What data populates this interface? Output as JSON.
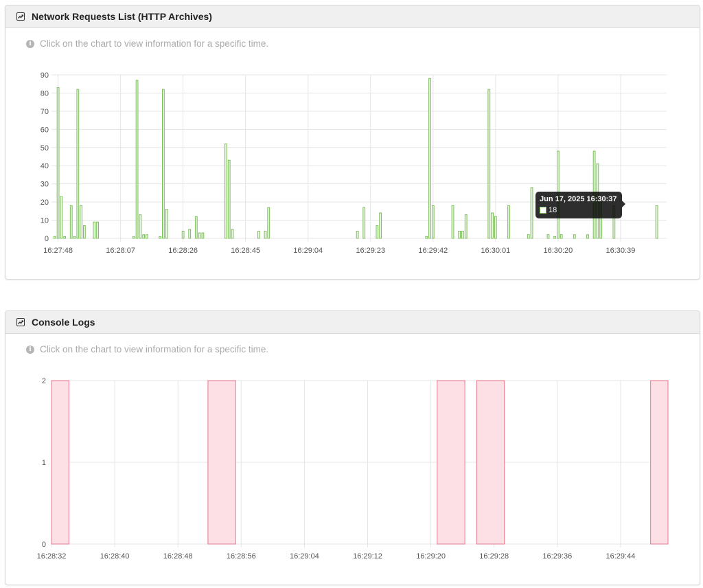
{
  "panels": [
    {
      "title": "Network Requests List (HTTP Archives)",
      "hint": "Click on the chart to view information for a specific time."
    },
    {
      "title": "Console Logs",
      "hint": "Click on the chart to view information for a specific time."
    }
  ],
  "tooltip": {
    "title": "Jun 17, 2025 16:30:37",
    "value": "18"
  },
  "colors": {
    "network_bar_stroke": "#7cbf5a",
    "network_bar_fill": "#eaf6e2",
    "console_stroke": "#e8768c",
    "console_fill": "#fde0e5",
    "grid": "#e5e5e5"
  },
  "chart_data": [
    {
      "type": "bar",
      "title": "",
      "xlabel": "",
      "ylabel": "",
      "ylim": [
        0,
        90
      ],
      "yticks": [
        "0",
        "10",
        "20",
        "30",
        "40",
        "50",
        "60",
        "70",
        "80",
        "90"
      ],
      "xticks": [
        "16:27:48",
        "16:28:07",
        "16:28:26",
        "16:28:45",
        "16:29:04",
        "16:29:23",
        "16:29:42",
        "16:30:01",
        "16:30:20",
        "16:30:39"
      ],
      "x_range": [
        "16:27:46",
        "16:30:53"
      ],
      "grid": true,
      "legend": "none",
      "series": [
        {
          "points": [
            [
              "16:27:47",
              1
            ],
            [
              "16:27:48",
              83
            ],
            [
              "16:27:49",
              23
            ],
            [
              "16:27:50",
              1
            ],
            [
              "16:27:52",
              18
            ],
            [
              "16:27:53",
              1
            ],
            [
              "16:27:54",
              82
            ],
            [
              "16:27:55",
              18
            ],
            [
              "16:27:56",
              7
            ],
            [
              "16:27:59",
              9
            ],
            [
              "16:28:00",
              9
            ],
            [
              "16:28:11",
              1
            ],
            [
              "16:28:12",
              87
            ],
            [
              "16:28:13",
              13
            ],
            [
              "16:28:14",
              2
            ],
            [
              "16:28:15",
              2
            ],
            [
              "16:28:19",
              1
            ],
            [
              "16:28:20",
              82
            ],
            [
              "16:28:21",
              16
            ],
            [
              "16:28:26",
              4
            ],
            [
              "16:28:28",
              5
            ],
            [
              "16:28:30",
              12
            ],
            [
              "16:28:31",
              3
            ],
            [
              "16:28:32",
              3
            ],
            [
              "16:28:39",
              52
            ],
            [
              "16:28:40",
              43
            ],
            [
              "16:28:41",
              5
            ],
            [
              "16:28:49",
              4
            ],
            [
              "16:28:51",
              4
            ],
            [
              "16:28:52",
              17
            ],
            [
              "16:29:19",
              4
            ],
            [
              "16:29:21",
              17
            ],
            [
              "16:29:25",
              7
            ],
            [
              "16:29:26",
              14
            ],
            [
              "16:29:40",
              1
            ],
            [
              "16:29:41",
              88
            ],
            [
              "16:29:42",
              18
            ],
            [
              "16:29:48",
              18
            ],
            [
              "16:29:50",
              4
            ],
            [
              "16:29:51",
              4
            ],
            [
              "16:29:52",
              13
            ],
            [
              "16:29:59",
              82
            ],
            [
              "16:30:00",
              14
            ],
            [
              "16:30:01",
              12
            ],
            [
              "16:30:05",
              18
            ],
            [
              "16:30:11",
              2
            ],
            [
              "16:30:12",
              28
            ],
            [
              "16:30:17",
              2
            ],
            [
              "16:30:19",
              1
            ],
            [
              "16:30:20",
              48
            ],
            [
              "16:30:21",
              2
            ],
            [
              "16:30:25",
              2
            ],
            [
              "16:30:29",
              2
            ],
            [
              "16:30:31",
              48
            ],
            [
              "16:30:32",
              41
            ],
            [
              "16:30:33",
              20
            ],
            [
              "16:30:37",
              18
            ],
            [
              "16:30:50",
              18
            ]
          ]
        }
      ]
    },
    {
      "type": "area",
      "title": "",
      "xlabel": "",
      "ylabel": "",
      "ylim": [
        0,
        2
      ],
      "yticks": [
        "0",
        "1",
        "2"
      ],
      "xticks": [
        "16:28:32",
        "16:28:40",
        "16:28:48",
        "16:28:56",
        "16:29:04",
        "16:29:12",
        "16:29:20",
        "16:29:28",
        "16:29:36",
        "16:29:44"
      ],
      "x_range": [
        "16:28:32",
        "16:29:50"
      ],
      "grid": true,
      "legend": "none",
      "series": [
        {
          "segments": [
            {
              "start": "16:28:32",
              "end": "16:28:34.2",
              "value": 2
            },
            {
              "start": "16:28:51.8",
              "end": "16:28:55.3",
              "value": 2
            },
            {
              "start": "16:29:20.8",
              "end": "16:29:24.3",
              "value": 2
            },
            {
              "start": "16:29:25.8",
              "end": "16:29:29.3",
              "value": 2
            },
            {
              "start": "16:29:47.8",
              "end": "16:29:50",
              "value": 2
            }
          ]
        }
      ]
    }
  ]
}
